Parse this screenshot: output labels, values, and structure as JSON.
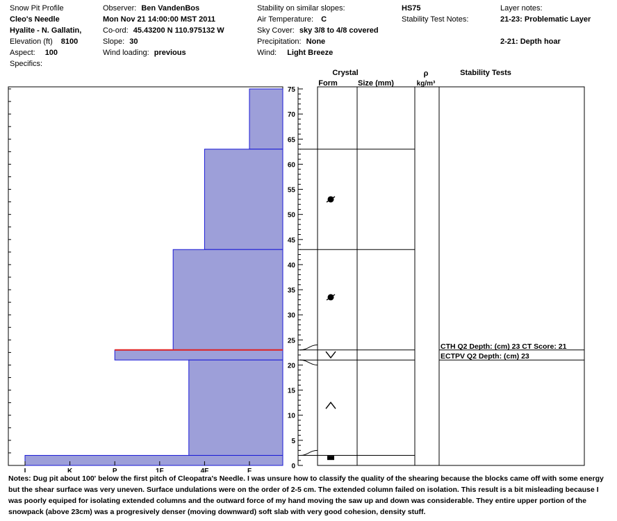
{
  "header": {
    "profile_title": "Snow Pit Profile",
    "location_name": "Cleo's Needle",
    "area": "Hyalite - N. Gallatin,",
    "elevation_label": "Elevation (ft)",
    "elevation_value": "8100",
    "aspect_label": "Aspect:",
    "aspect_value": "100",
    "specifics_label": "Specifics:",
    "observer_label": "Observer:",
    "observer_value": "Ben VandenBos",
    "date": "Mon Nov 21 14:00:00 MST 2011",
    "coord_label": "Co-ord:",
    "coord_value": "45.43200 N 110.975132 W",
    "slope_label": "Slope:",
    "slope_value": "30",
    "wind_loading_label": "Wind loading:",
    "wind_loading_value": "previous",
    "stability_label": "Stability on similar slopes:",
    "air_temp_label": "Air Temperature:",
    "air_temp_value": "C",
    "sky_label": "Sky Cover:",
    "sky_value": "sky 3/8 to 4/8 covered",
    "precip_label": "Precipitation:",
    "precip_value": "None",
    "wind_label": "Wind:",
    "wind_value": "Light Breeze",
    "hs": "HS75",
    "stability_notes_label": "Stability Test Notes:",
    "layer_notes_label": "Layer notes:",
    "layer_note_1": "21-23: Problematic Layer",
    "layer_note_2": "2-21: Depth hoar"
  },
  "columns": {
    "crystal": "Crystal",
    "form": "Form",
    "size": "Size (mm)",
    "rho": "ρ",
    "density": "kg/m³",
    "stability_tests": "Stability Tests"
  },
  "stability_tests": [
    "CTH Q2 Depth: (cm) 23 CT Score: 21",
    "ECTPV Q2 Depth: (cm) 23"
  ],
  "notes": {
    "label": "Notes:",
    "text": "Dug pit about 100' below the first pitch of Cleopatra's Needle.  I was unsure how to classify the quality of the shearing because the blocks came off with some energy but the shear surface was very uneven.  Surface undulations were on the order of 2-5 cm.  The extended column failed on isolation.  This result is a bit misleading because I was poorly equiped for isolating extended columns and the outward force of my hand moving the saw up and down was considerable.   They entire upper portion of the snowpack (above 23cm)  was a progresively denser (moving downward) soft slab with very good cohesion, density stuff."
  },
  "chart_data": {
    "type": "bar",
    "hardness_scale": [
      "I",
      "K",
      "P",
      "1F",
      "4F",
      "F"
    ],
    "height_axis": {
      "min": 0,
      "max": 75,
      "ticks": [
        0,
        5,
        10,
        15,
        20,
        25,
        30,
        35,
        40,
        45,
        50,
        55,
        60,
        65,
        70,
        75
      ]
    },
    "layers": [
      {
        "bottom": 63,
        "top": 75,
        "hardness": 5.0
      },
      {
        "bottom": 43,
        "top": 63,
        "hardness": 4.0
      },
      {
        "bottom": 23,
        "top": 43,
        "hardness": 3.3
      },
      {
        "bottom": 21,
        "top": 23,
        "hardness": 2.0
      },
      {
        "bottom": 2,
        "top": 21,
        "hardness": 3.65
      },
      {
        "bottom": 0,
        "top": 2,
        "hardness": 0
      }
    ],
    "problematic_boundary": 23,
    "crystal_boundaries": [
      63,
      43,
      23,
      21,
      2
    ],
    "crystal_symbols": [
      {
        "height": 53,
        "symbol": "rounded"
      },
      {
        "height": 33.5,
        "symbol": "rounded"
      },
      {
        "height": 22,
        "symbol": "facet-down"
      },
      {
        "height": 12,
        "symbol": "facet-up"
      },
      {
        "height": 1.5,
        "symbol": "ice"
      }
    ],
    "stability_test_boundaries": [
      23,
      21
    ],
    "colors": {
      "fill": "#9d9fd9",
      "edge": "#1a1ad6",
      "weak_layer": "#e02020"
    }
  }
}
